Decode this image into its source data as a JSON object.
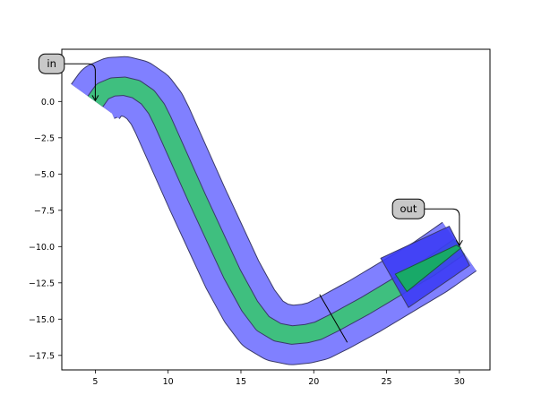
{
  "chart_data": {
    "type": "area",
    "title": "",
    "xlabel": "",
    "ylabel": "",
    "xlim": [
      2.7,
      32.1
    ],
    "ylim": [
      -18.5,
      3.6
    ],
    "grid": false,
    "xticks": [
      5,
      10,
      15,
      20,
      25,
      30
    ],
    "yticks": [
      0.0,
      -2.5,
      -5.0,
      -7.5,
      -10.0,
      -12.5,
      -15.0,
      -17.5
    ],
    "xtick_labels": [
      "5",
      "10",
      "15",
      "20",
      "25",
      "30"
    ],
    "ytick_labels": [
      "0.0",
      "−2.5",
      "−5.0",
      "−7.5",
      "−10.0",
      "−12.5",
      "−15.0",
      "−17.5"
    ],
    "colors": {
      "cladding": "#8080ff",
      "core": "#3fbf7f",
      "taper_cladding": "#3c3cf5",
      "taper_core": "#14b45a",
      "outline": "#3a3a6a",
      "annotation_box": "#c8c8c8"
    },
    "waveguide_centerline": {
      "name": "bend-waveguide",
      "points": [
        [
          5.0,
          0.0
        ],
        [
          5.5,
          0.7
        ],
        [
          6.2,
          1.0
        ],
        [
          7.0,
          1.05
        ],
        [
          7.8,
          0.85
        ],
        [
          8.6,
          0.3
        ],
        [
          9.2,
          -0.5
        ],
        [
          9.6,
          -1.3
        ],
        [
          10.8,
          -4.0
        ],
        [
          12.0,
          -6.7
        ],
        [
          13.2,
          -9.3
        ],
        [
          14.4,
          -11.9
        ],
        [
          15.6,
          -14.1
        ],
        [
          16.5,
          -15.3
        ],
        [
          17.5,
          -15.9
        ],
        [
          18.5,
          -16.1
        ],
        [
          19.5,
          -16.0
        ],
        [
          20.3,
          -15.8
        ],
        [
          21.5,
          -15.2
        ],
        [
          23.5,
          -14.1
        ],
        [
          25.0,
          -13.2
        ],
        [
          26.0,
          -12.6
        ],
        [
          28.0,
          -11.4
        ],
        [
          30.0,
          -10.0
        ]
      ],
      "core_width": 1.2,
      "cladding_width": 4.0
    },
    "taper": {
      "name": "output-taper",
      "core_polygon": [
        [
          25.6,
          -11.9
        ],
        [
          26.4,
          -13.1
        ],
        [
          30.1,
          -10.1
        ],
        [
          29.8,
          -9.9
        ]
      ],
      "cladding_polygon": [
        [
          24.6,
          -10.8
        ],
        [
          29.3,
          -8.6
        ],
        [
          30.7,
          -11.3
        ],
        [
          26.5,
          -14.2
        ]
      ]
    },
    "cuts": [
      [
        [
          20.4,
          -13.3
        ],
        [
          22.3,
          -16.6
        ]
      ]
    ],
    "annotations": [
      {
        "text": "in",
        "xy": [
          5.0,
          0.0
        ],
        "xytext": [
          2.0,
          2.6
        ]
      },
      {
        "text": "out",
        "xy": [
          30.0,
          -10.0
        ],
        "xytext": [
          26.5,
          -7.4
        ]
      }
    ]
  }
}
